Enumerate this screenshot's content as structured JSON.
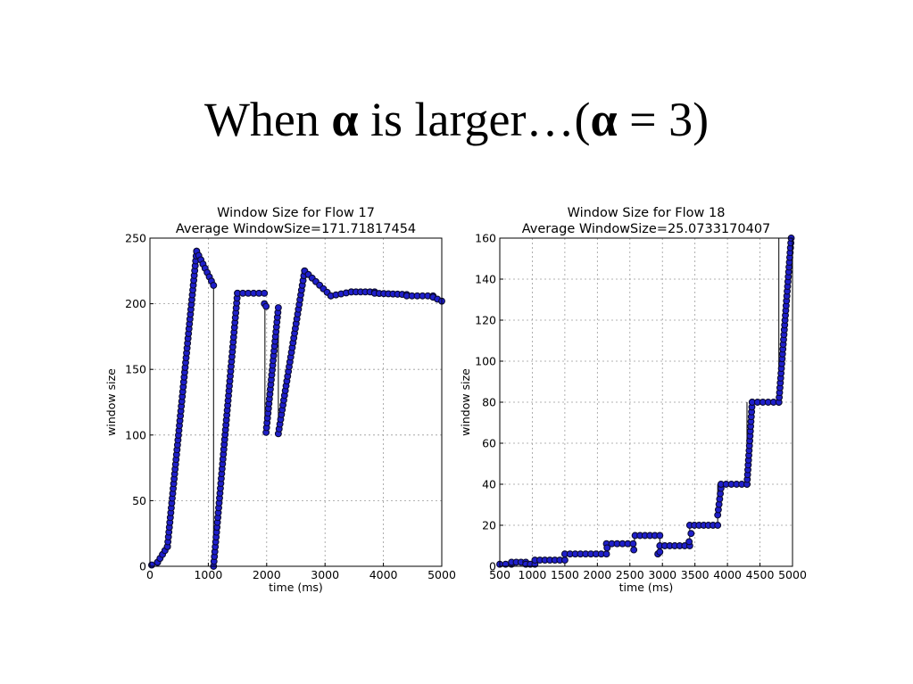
{
  "slide": {
    "title_pre": "When ",
    "alpha": "α",
    "title_mid": " is larger…(",
    "title_eq": " = 3)"
  },
  "chart_data": [
    {
      "type": "scatter",
      "title": "Window Size for Flow 17",
      "subtitle": "Average WindowSize=171.71817454",
      "xlabel": "time (ms)",
      "ylabel": "window size",
      "xlim": [
        0,
        5000
      ],
      "ylim": [
        0,
        250
      ],
      "xticks": [
        0,
        1000,
        2000,
        3000,
        4000,
        5000
      ],
      "yticks": [
        0,
        50,
        100,
        150,
        200,
        250
      ],
      "grid": true,
      "marker_color": "#1f1fcc",
      "marker_edge": "#0a0a30",
      "segments": [
        {
          "x0": 30,
          "x1": 130,
          "y0": 1,
          "y1": 3
        },
        {
          "x0": 130,
          "x1": 300,
          "y0": 3,
          "y1": 15
        },
        {
          "x0": 300,
          "x1": 800,
          "y0": 15,
          "y1": 240
        },
        {
          "x0": 800,
          "x1": 1090,
          "y0": 240,
          "y1": 214
        },
        {
          "x0": 1090,
          "x1": 1500,
          "y0": 0,
          "y1": 208
        },
        {
          "x0": 1500,
          "x1": 1960,
          "y0": 208,
          "y1": 208
        },
        {
          "x0": 1960,
          "x1": 1990,
          "y0": 200,
          "y1": 198
        },
        {
          "x0": 1990,
          "x1": 2200,
          "y0": 102,
          "y1": 197
        },
        {
          "x0": 2200,
          "x1": 2650,
          "y0": 101,
          "y1": 225
        },
        {
          "x0": 2650,
          "x1": 3100,
          "y0": 225,
          "y1": 206
        },
        {
          "x0": 3100,
          "x1": 3450,
          "y0": 206,
          "y1": 209
        },
        {
          "x0": 3450,
          "x1": 3850,
          "y0": 209,
          "y1": 209
        },
        {
          "x0": 3850,
          "x1": 4400,
          "y0": 208,
          "y1": 207
        },
        {
          "x0": 4400,
          "x1": 4850,
          "y0": 206,
          "y1": 206
        },
        {
          "x0": 4850,
          "x1": 5000,
          "y0": 205,
          "y1": 202
        }
      ],
      "vlines": [
        {
          "x": 1090,
          "y0": 0,
          "y1": 214
        },
        {
          "x": 1970,
          "y0": 102,
          "y1": 200
        },
        {
          "x": 2200,
          "y0": 101,
          "y1": 197
        }
      ]
    },
    {
      "type": "scatter",
      "title": "Window Size for Flow 18",
      "subtitle": "Average WindowSize=25.0733170407",
      "xlabel": "time (ms)",
      "ylabel": "window size",
      "xlim": [
        500,
        5000
      ],
      "ylim": [
        0,
        160
      ],
      "xticks": [
        500,
        1000,
        1500,
        2000,
        2500,
        3000,
        3500,
        4000,
        4500,
        5000
      ],
      "yticks": [
        0,
        20,
        40,
        60,
        80,
        100,
        120,
        140,
        160
      ],
      "grid": true,
      "marker_color": "#1f1fcc",
      "marker_edge": "#0a0a30",
      "segments": [
        {
          "x0": 500,
          "x1": 680,
          "y0": 1,
          "y1": 1
        },
        {
          "x0": 680,
          "x1": 900,
          "y0": 2,
          "y1": 2
        },
        {
          "x0": 900,
          "x1": 1040,
          "y0": 1,
          "y1": 1
        },
        {
          "x0": 1040,
          "x1": 1500,
          "y0": 3,
          "y1": 3
        },
        {
          "x0": 1500,
          "x1": 2140,
          "y0": 6,
          "y1": 6
        },
        {
          "x0": 2140,
          "x1": 2550,
          "y0": 11,
          "y1": 11
        },
        {
          "x0": 2580,
          "x1": 2960,
          "y0": 15,
          "y1": 15
        },
        {
          "x0": 2960,
          "x1": 3420,
          "y0": 10,
          "y1": 10
        },
        {
          "x0": 3420,
          "x1": 3850,
          "y0": 20,
          "y1": 20
        },
        {
          "x0": 3850,
          "x1": 3900,
          "y0": 25,
          "y1": 38
        },
        {
          "x0": 3900,
          "x1": 4300,
          "y0": 40,
          "y1": 40
        },
        {
          "x0": 4300,
          "x1": 4380,
          "y0": 40,
          "y1": 80
        },
        {
          "x0": 4380,
          "x1": 4790,
          "y0": 80,
          "y1": 80
        },
        {
          "x0": 4790,
          "x1": 4980,
          "y0": 80,
          "y1": 160
        }
      ],
      "extra_points": [
        {
          "x": 2560,
          "y": 8
        },
        {
          "x": 2930,
          "y": 6
        },
        {
          "x": 2960,
          "y": 7
        },
        {
          "x": 3410,
          "y": 12
        },
        {
          "x": 3440,
          "y": 16
        },
        {
          "x": 2150,
          "y": 9
        }
      ],
      "vlines": [
        {
          "x": 2140,
          "y0": 6,
          "y1": 11
        },
        {
          "x": 2570,
          "y0": 8,
          "y1": 15
        },
        {
          "x": 2960,
          "y0": 6,
          "y1": 15
        },
        {
          "x": 3420,
          "y0": 10,
          "y1": 20
        },
        {
          "x": 3850,
          "y0": 20,
          "y1": 40
        },
        {
          "x": 4300,
          "y0": 40,
          "y1": 80
        },
        {
          "x": 4790,
          "y0": 80,
          "y1": 160
        }
      ]
    }
  ]
}
